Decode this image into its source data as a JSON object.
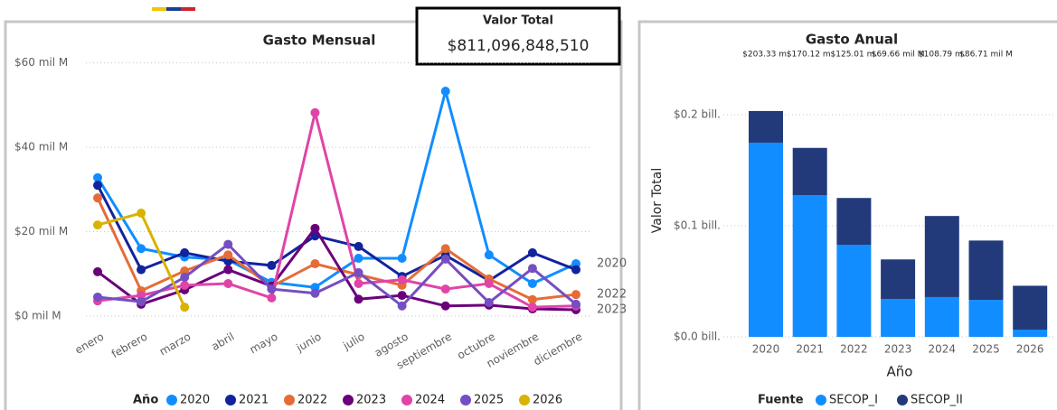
{
  "card": {
    "title": "Valor Total",
    "value": "$811,096,848,510"
  },
  "chart_data": [
    {
      "type": "line",
      "title": "Gasto Mensual",
      "categories": [
        "enero",
        "febrero",
        "marzo",
        "abril",
        "mayo",
        "junio",
        "julio",
        "agosto",
        "septiembre",
        "octubre",
        "noviembre",
        "diciembre"
      ],
      "series": [
        {
          "name": "2020",
          "color": "#118dff",
          "values": [
            32.8,
            16,
            14,
            13.3,
            8,
            6.8,
            13.7,
            13.7,
            53.3,
            14.5,
            7.7,
            12.4
          ]
        },
        {
          "name": "2021",
          "color": "#12239e",
          "values": [
            31,
            11,
            15,
            13,
            12,
            19,
            16.5,
            9.4,
            14.4,
            8.4,
            15,
            11
          ]
        },
        {
          "name": "2022",
          "color": "#e66c37",
          "values": [
            28,
            6,
            10.7,
            14.5,
            7,
            12.4,
            9.8,
            7.3,
            16,
            8.8,
            3.9,
            5.1
          ]
        },
        {
          "name": "2023",
          "color": "#6b007b",
          "values": [
            10.5,
            2.8,
            6.2,
            11,
            7.1,
            20.8,
            4,
            4.9,
            2.4,
            2.6,
            1.7,
            1.5
          ]
        },
        {
          "name": "2024",
          "color": "#e044a7",
          "values": [
            3.6,
            4.9,
            7.3,
            7.7,
            4.3,
            48.2,
            7.7,
            8.6,
            6.4,
            7.7,
            2.1,
            2.4
          ]
        },
        {
          "name": "2025",
          "color": "#744ec2",
          "values": [
            4.5,
            3.4,
            9.2,
            17,
            6.4,
            5.4,
            10.3,
            2.4,
            13.5,
            3.2,
            11.3,
            2.8
          ]
        },
        {
          "name": "2026",
          "color": "#d9b300",
          "values": [
            21.6,
            24.4,
            2.1,
            null,
            null,
            null,
            null,
            null,
            null,
            null,
            null,
            null
          ]
        }
      ],
      "end_labels": [
        "2020",
        "2022",
        "2023"
      ],
      "legend_title": "Año",
      "ylim": [
        -3,
        64
      ],
      "yticks": [
        {
          "value": 0,
          "label": "$0 mil M"
        },
        {
          "value": 20,
          "label": "$20 mil M"
        },
        {
          "value": 40,
          "label": "$40 mil M"
        },
        {
          "value": 60,
          "label": "$60 mil M"
        }
      ],
      "grid": true
    },
    {
      "type": "stacked_bar",
      "title": "Gasto Anual",
      "categories": [
        "2020",
        "2021",
        "2022",
        "2023",
        "2024",
        "2025",
        "2026"
      ],
      "series": [
        {
          "name": "SECOP_I",
          "color": "#118dff",
          "values": [
            0.1748,
            0.1276,
            0.0829,
            0.0341,
            0.0358,
            0.0333,
            0.0065
          ]
        },
        {
          "name": "SECOP_II",
          "color": "#223a7a",
          "values": [
            0.0285,
            0.0425,
            0.0421,
            0.0356,
            0.073,
            0.0534,
            0.0395
          ]
        }
      ],
      "totals": [
        0.20333,
        0.17012,
        0.12501,
        0.06966,
        0.10879,
        0.08671
      ],
      "total_labels": [
        "$203.33 m.",
        "$170.12 m.",
        "$125.01 m.",
        "$69.66 mil M",
        "$108.79 m.",
        "$86.71 mil M"
      ],
      "xlabel": "Año",
      "ylabel": "Valor Total",
      "legend_title": "Fuente",
      "ylim": [
        0,
        0.226
      ],
      "yticks": [
        {
          "value": 0,
          "label": "$0.0 bill."
        },
        {
          "value": 0.1,
          "label": "$0.1 bill."
        },
        {
          "value": 0.2,
          "label": "$0.2 bill."
        }
      ],
      "grid": true
    }
  ]
}
